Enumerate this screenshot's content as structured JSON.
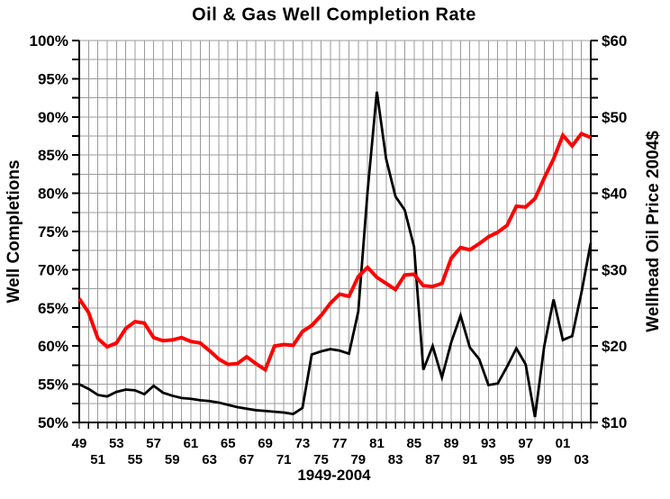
{
  "chart": {
    "title": "Oil & Gas Well Completion Rate",
    "x_axis_title": "1949-2004",
    "left_axis_title": "Well Completions",
    "right_axis_title": "Wellhead Oil Price 2004$"
  },
  "chart_data": {
    "type": "line",
    "title": "Oil & Gas Well Completion Rate",
    "xlabel": "1949-2004",
    "ylabel_left": "Well Completions",
    "ylabel_right": "Wellhead Oil Price 2004$",
    "x_range": [
      1949,
      2004
    ],
    "ylim_left": [
      50,
      100
    ],
    "ylim_right": [
      10,
      60
    ],
    "grid": true,
    "grid_x_step_years": 1,
    "grid_y_step_left_pct": 2.5,
    "legend": "none",
    "colors": {
      "grid": "#9b9b9b",
      "axis": "#000000",
      "completions_line": "#ff0000",
      "price_line": "#000000",
      "background": "#ffffff"
    },
    "left_ticks": {
      "values": [
        100,
        95,
        90,
        85,
        80,
        75,
        70,
        65,
        60,
        55,
        50
      ],
      "labels": [
        "100%",
        "95%",
        "90%",
        "85%",
        "80%",
        "75%",
        "70%",
        "65%",
        "60%",
        "55%",
        "50%"
      ],
      "minor_step": 2.5
    },
    "right_ticks": {
      "values": [
        60,
        50,
        40,
        30,
        20,
        10
      ],
      "labels": [
        "$60",
        "$50",
        "$40",
        "$30",
        "$20",
        "$10"
      ],
      "minor_step": 2.5
    },
    "x_tick_rows": [
      {
        "years": [
          1949,
          1953,
          1957,
          1961,
          1965,
          1969,
          1973,
          1977,
          1981,
          1985,
          1989,
          1993,
          1997,
          2001
        ],
        "labels": [
          "49",
          "53",
          "57",
          "61",
          "65",
          "69",
          "73",
          "77",
          "81",
          "85",
          "89",
          "93",
          "97",
          "01"
        ]
      },
      {
        "years": [
          1951,
          1955,
          1959,
          1963,
          1967,
          1971,
          1975,
          1979,
          1983,
          1987,
          1991,
          1995,
          1999,
          2003
        ],
        "labels": [
          "51",
          "55",
          "59",
          "63",
          "67",
          "71",
          "75",
          "79",
          "83",
          "87",
          "91",
          "95",
          "99",
          "03"
        ]
      }
    ],
    "x": [
      1949,
      1950,
      1951,
      1952,
      1953,
      1954,
      1955,
      1956,
      1957,
      1958,
      1959,
      1960,
      1961,
      1962,
      1963,
      1964,
      1965,
      1966,
      1967,
      1968,
      1969,
      1970,
      1971,
      1972,
      1973,
      1974,
      1975,
      1976,
      1977,
      1978,
      1979,
      1980,
      1981,
      1982,
      1983,
      1984,
      1985,
      1986,
      1987,
      1988,
      1989,
      1990,
      1991,
      1992,
      1993,
      1994,
      1995,
      1996,
      1997,
      1998,
      1999,
      2000,
      2001,
      2002,
      2003,
      2004
    ],
    "series": [
      {
        "name": "Well Completions",
        "axis": "left",
        "unit": "%",
        "color": "#ff0000",
        "stroke_width": 4,
        "values": [
          66.2,
          64.4,
          61.0,
          59.9,
          60.4,
          62.3,
          63.2,
          63.0,
          61.1,
          60.7,
          60.8,
          61.1,
          60.6,
          60.4,
          59.4,
          58.3,
          57.6,
          57.7,
          58.6,
          57.7,
          56.9,
          60.0,
          60.2,
          60.1,
          61.9,
          62.7,
          64.0,
          65.6,
          66.8,
          66.5,
          69.1,
          70.3,
          69.0,
          68.2,
          67.4,
          69.3,
          69.4,
          67.9,
          67.8,
          68.2,
          71.5,
          72.9,
          72.6,
          73.4,
          74.3,
          74.9,
          75.8,
          78.3,
          78.2,
          79.3,
          82.0,
          84.5,
          87.6,
          86.2,
          87.8,
          87.3
        ]
      },
      {
        "name": "Wellhead Oil Price 2004$",
        "axis": "right",
        "unit": "$",
        "color": "#000000",
        "stroke_width": 2.8,
        "values": [
          15.0,
          14.4,
          13.6,
          13.4,
          14.0,
          14.3,
          14.2,
          13.7,
          14.8,
          13.9,
          13.5,
          13.2,
          13.1,
          12.9,
          12.8,
          12.6,
          12.3,
          12.0,
          11.8,
          11.6,
          11.5,
          11.4,
          11.3,
          11.1,
          11.9,
          18.9,
          19.3,
          19.6,
          19.4,
          19.0,
          24.5,
          40.2,
          53.3,
          44.5,
          39.6,
          37.8,
          33.0,
          16.9,
          20.0,
          15.9,
          20.5,
          24.0,
          19.8,
          18.3,
          14.9,
          15.1,
          17.3,
          19.7,
          17.6,
          10.7,
          20.0,
          26.1,
          20.8,
          21.3,
          27.0,
          33.5
        ]
      }
    ]
  }
}
